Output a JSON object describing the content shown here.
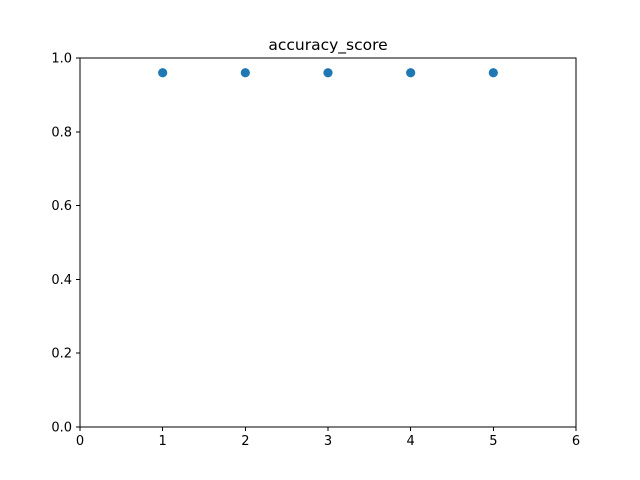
{
  "chart_data": {
    "type": "scatter",
    "title": "accuracy_score",
    "xlabel": "",
    "ylabel": "",
    "xlim": [
      0,
      6
    ],
    "ylim": [
      0.0,
      1.0
    ],
    "xticks": [
      0,
      1,
      2,
      3,
      4,
      5,
      6
    ],
    "xtick_labels": [
      "0",
      "1",
      "2",
      "3",
      "4",
      "5",
      "6"
    ],
    "yticks": [
      0.0,
      0.2,
      0.4,
      0.6,
      0.8,
      1.0
    ],
    "ytick_labels": [
      "0.0",
      "0.2",
      "0.4",
      "0.6",
      "0.8",
      "1.0"
    ],
    "grid": false,
    "legend": "none",
    "series": [
      {
        "color": "#1f77b4",
        "x": [
          1,
          2,
          3,
          4,
          5
        ],
        "y": [
          0.96,
          0.96,
          0.96,
          0.96,
          0.96
        ]
      }
    ]
  }
}
